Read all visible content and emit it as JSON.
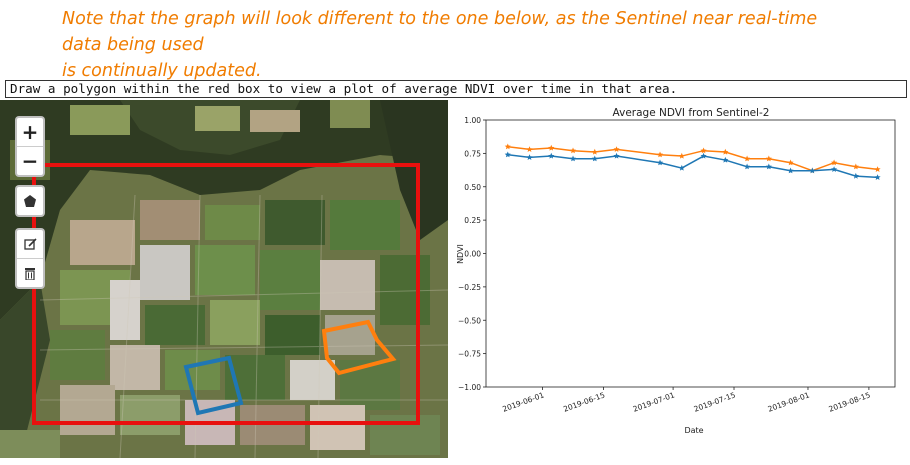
{
  "note": {
    "line1": "Note that the graph will look different to the one below, as the Sentinel near real-time data being used",
    "line2": "is continually updated."
  },
  "prompt": "Draw a polygon within the red box to view a plot of average NDVI over time in that area.",
  "map": {
    "zoom_in_label": "+",
    "zoom_out_label": "−",
    "tools": [
      "draw-polygon",
      "edit-layers",
      "delete-layers"
    ],
    "colors": {
      "bbox": "#e8100e",
      "polygon_blue": "#1f77b4",
      "polygon_orange": "#ff7f0e"
    }
  },
  "chart_data": {
    "type": "line",
    "title": "Average NDVI from Sentinel-2",
    "xlabel": "Date",
    "ylabel": "NDVI",
    "ylim": [
      -1.0,
      1.0
    ],
    "yticks": [
      "1.00",
      "0.75",
      "0.50",
      "0.25",
      "0.00",
      "−0.25",
      "−0.50",
      "−0.75",
      "−1.00"
    ],
    "xticks": [
      "2019-06-01",
      "2019-06-15",
      "2019-07-01",
      "2019-07-15",
      "2019-08-01",
      "2019-08-15"
    ],
    "x": [
      "2019-05-24",
      "2019-05-29",
      "2019-06-03",
      "2019-06-08",
      "2019-06-13",
      "2019-06-18",
      "2019-06-28",
      "2019-07-03",
      "2019-07-08",
      "2019-07-13",
      "2019-07-18",
      "2019-07-23",
      "2019-07-28",
      "2019-08-02",
      "2019-08-07",
      "2019-08-12",
      "2019-08-17"
    ],
    "series": [
      {
        "color": "#ff7f0e",
        "marker": "star",
        "values": [
          0.8,
          0.78,
          0.79,
          0.77,
          0.76,
          0.78,
          0.74,
          0.73,
          0.77,
          0.76,
          0.71,
          0.71,
          0.68,
          0.62,
          0.68,
          0.65,
          0.63
        ]
      },
      {
        "color": "#1f77b4",
        "marker": "star",
        "values": [
          0.74,
          0.72,
          0.73,
          0.71,
          0.71,
          0.73,
          0.68,
          0.64,
          0.73,
          0.7,
          0.65,
          0.65,
          0.62,
          0.62,
          0.63,
          0.58,
          0.57
        ]
      }
    ],
    "grid": false,
    "legend": "none"
  }
}
